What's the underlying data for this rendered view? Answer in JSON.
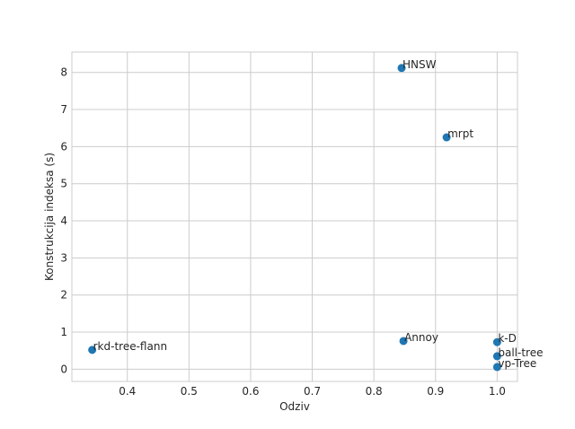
{
  "chart_data": {
    "type": "scatter",
    "title": "",
    "xlabel": "Odziv",
    "ylabel": "Konstrukcija indeksa (s)",
    "xlim": [
      0.31,
      1.033
    ],
    "ylim": [
      -0.33,
      8.55
    ],
    "xticks": [
      "0.4",
      "0.5",
      "0.6",
      "0.7",
      "0.8",
      "0.9",
      "1.0"
    ],
    "yticks": [
      "0",
      "1",
      "2",
      "3",
      "4",
      "5",
      "6",
      "7",
      "8"
    ],
    "grid": true,
    "marker_color": "#1f77b4",
    "points": [
      {
        "label": "HNSW",
        "x": 0.845,
        "y": 8.12
      },
      {
        "label": "mrpt",
        "x": 0.918,
        "y": 6.25
      },
      {
        "label": "Annoy",
        "x": 0.848,
        "y": 0.76
      },
      {
        "label": "k-D",
        "x": 1.0,
        "y": 0.73
      },
      {
        "label": "ball-tree",
        "x": 1.0,
        "y": 0.35
      },
      {
        "label": "vp-Tree",
        "x": 1.0,
        "y": 0.06
      },
      {
        "label": "rkd-tree-flann",
        "x": 0.343,
        "y": 0.52
      }
    ]
  }
}
